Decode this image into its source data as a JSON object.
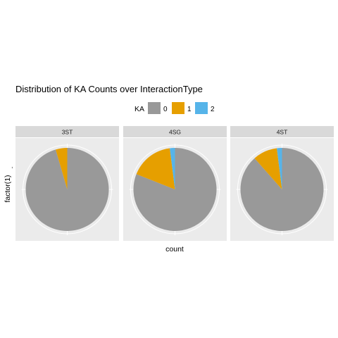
{
  "chart_data": {
    "type": "pie",
    "title": "Distribution of KA Counts over InteractionType",
    "xlabel": "count",
    "ylabel": "factor(1)",
    "ytick": "-",
    "legend": {
      "title": "KA",
      "placement": "top",
      "entries": [
        {
          "label": "0",
          "color": "#999999"
        },
        {
          "label": "1",
          "color": "#E69F00"
        },
        {
          "label": "2",
          "color": "#56B4E9"
        }
      ]
    },
    "facets": [
      {
        "label": "3ST",
        "slices": [
          {
            "category": "0",
            "value": 0.955
          },
          {
            "category": "1",
            "value": 0.045
          },
          {
            "category": "2",
            "value": 0.0
          }
        ]
      },
      {
        "label": "4SG",
        "slices": [
          {
            "category": "0",
            "value": 0.81
          },
          {
            "category": "1",
            "value": 0.17
          },
          {
            "category": "2",
            "value": 0.02
          }
        ]
      },
      {
        "label": "4ST",
        "slices": [
          {
            "category": "0",
            "value": 0.885
          },
          {
            "category": "1",
            "value": 0.095
          },
          {
            "category": "2",
            "value": 0.02
          }
        ]
      }
    ],
    "grid": true
  }
}
